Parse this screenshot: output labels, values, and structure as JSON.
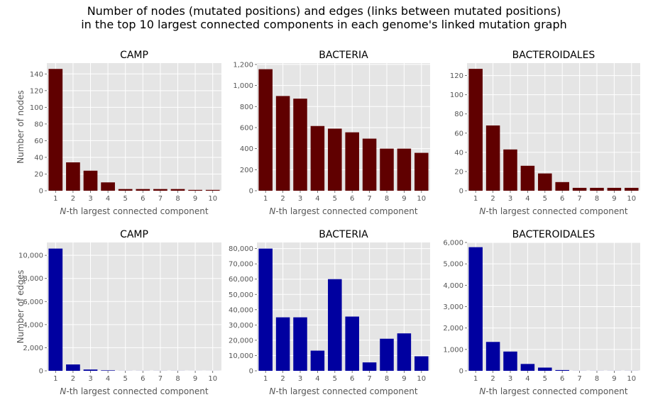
{
  "suptitle": {
    "line1": "Number of nodes (mutated positions) and edges (links between mutated positions)",
    "line2": "in the top 10 largest connected components in each genome's linked mutation graph"
  },
  "colors": {
    "nodes": "#600000",
    "edges": "#0000a0",
    "panel_bg": "#e5e5e5",
    "grid": "#ffffff",
    "tick_text": "#555555",
    "label_text": "#555555"
  },
  "chart_data": [
    {
      "type": "bar",
      "title": "CAMP",
      "metric": "nodes",
      "xlabel_prefix": "N",
      "xlabel_rest": "-th largest connected component",
      "ylabel": "Number of nodes",
      "categories": [
        "1",
        "2",
        "3",
        "4",
        "5",
        "6",
        "7",
        "8",
        "9",
        "10"
      ],
      "values": [
        146,
        34,
        24,
        10,
        2,
        2,
        2,
        2,
        1,
        1
      ],
      "ylim": [
        0,
        153
      ],
      "yticks": [
        0,
        20,
        40,
        60,
        80,
        100,
        120,
        140
      ],
      "ytick_labels": [
        "0",
        "20",
        "40",
        "60",
        "80",
        "100",
        "120",
        "140"
      ],
      "grid": true
    },
    {
      "type": "bar",
      "title": "BACTERIA",
      "metric": "nodes",
      "xlabel_prefix": "N",
      "xlabel_rest": "-th largest connected component",
      "ylabel": "",
      "categories": [
        "1",
        "2",
        "3",
        "4",
        "5",
        "6",
        "7",
        "8",
        "9",
        "10"
      ],
      "values": [
        1155,
        900,
        875,
        615,
        590,
        555,
        495,
        400,
        400,
        360
      ],
      "ylim": [
        0,
        1213
      ],
      "yticks": [
        0,
        200,
        400,
        600,
        800,
        1000,
        1200
      ],
      "ytick_labels": [
        "0",
        "200",
        "400",
        "600",
        "800",
        "1,000",
        "1,200"
      ],
      "grid": true
    },
    {
      "type": "bar",
      "title": "BACTEROIDALES",
      "metric": "nodes",
      "xlabel_prefix": "N",
      "xlabel_rest": "-th largest connected component",
      "ylabel": "",
      "categories": [
        "1",
        "2",
        "3",
        "4",
        "5",
        "6",
        "7",
        "8",
        "9",
        "10"
      ],
      "values": [
        127,
        68,
        43,
        26,
        18,
        9,
        3,
        3,
        3,
        3
      ],
      "ylim": [
        0,
        133
      ],
      "yticks": [
        0,
        20,
        40,
        60,
        80,
        100,
        120
      ],
      "ytick_labels": [
        "0",
        "20",
        "40",
        "60",
        "80",
        "100",
        "120"
      ],
      "grid": true
    },
    {
      "type": "bar",
      "title": "CAMP",
      "metric": "edges",
      "xlabel_prefix": "N",
      "xlabel_rest": "-th largest connected component",
      "ylabel": "Number of edges",
      "categories": [
        "1",
        "2",
        "3",
        "4",
        "5",
        "6",
        "7",
        "8",
        "9",
        "10"
      ],
      "values": [
        10585,
        550,
        110,
        40,
        5,
        5,
        5,
        5,
        2,
        2
      ],
      "ylim": [
        0,
        11114
      ],
      "yticks": [
        0,
        2000,
        4000,
        6000,
        8000,
        10000
      ],
      "ytick_labels": [
        "0",
        "2,000",
        "4,000",
        "6,000",
        "8,000",
        "10,000"
      ],
      "grid": true
    },
    {
      "type": "bar",
      "title": "BACTERIA",
      "metric": "edges",
      "xlabel_prefix": "N",
      "xlabel_rest": "-th largest connected component",
      "ylabel": "",
      "categories": [
        "1",
        "2",
        "3",
        "4",
        "5",
        "6",
        "7",
        "8",
        "9",
        "10"
      ],
      "values": [
        80000,
        35000,
        35000,
        13200,
        60000,
        35500,
        5500,
        21000,
        24500,
        9500
      ],
      "ylim": [
        0,
        84000
      ],
      "yticks": [
        0,
        10000,
        20000,
        30000,
        40000,
        50000,
        60000,
        70000,
        80000
      ],
      "ytick_labels": [
        "0",
        "10,000",
        "20,000",
        "30,000",
        "40,000",
        "50,000",
        "60,000",
        "70,000",
        "80,000"
      ],
      "grid": true
    },
    {
      "type": "bar",
      "title": "BACTEROIDALES",
      "metric": "edges",
      "xlabel_prefix": "N",
      "xlabel_rest": "-th largest connected component",
      "ylabel": "",
      "categories": [
        "1",
        "2",
        "3",
        "4",
        "5",
        "6",
        "7",
        "8",
        "9",
        "10"
      ],
      "values": [
        5780,
        1350,
        900,
        320,
        150,
        36,
        3,
        3,
        3,
        3
      ],
      "ylim": [
        0,
        6000
      ],
      "yticks": [
        0,
        1000,
        2000,
        3000,
        4000,
        5000,
        6000
      ],
      "ytick_labels": [
        "0",
        "1,000",
        "2,000",
        "3,000",
        "4,000",
        "5,000",
        "6,000"
      ],
      "grid": true
    }
  ]
}
